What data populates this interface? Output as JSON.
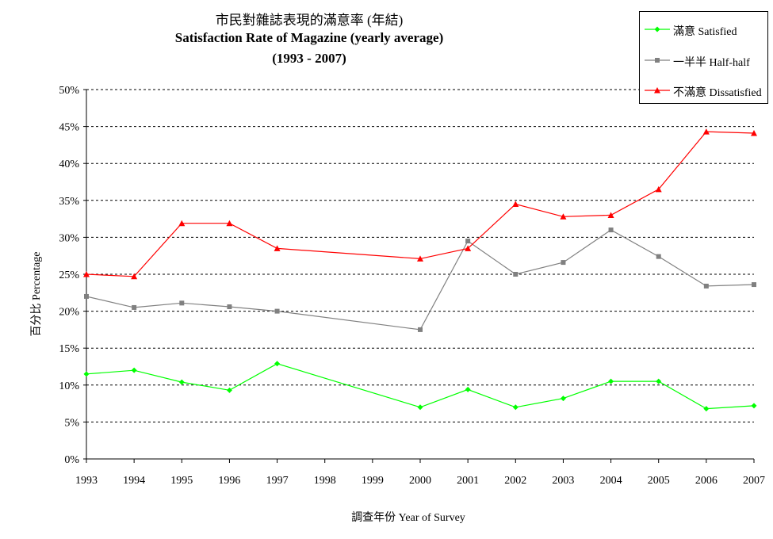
{
  "chart_data": {
    "type": "line",
    "title": "市民對雜誌表現的滿意率 (年結)",
    "subtitle": "Satisfaction Rate of Magazine (yearly average)",
    "year_range": "(1993 - 2007)",
    "xlabel": "調查年份 Year of Survey",
    "ylabel": "百分比 Percentage",
    "categories": [
      "1993",
      "1994",
      "1995",
      "1996",
      "1997",
      "1998",
      "1999",
      "2000",
      "2001",
      "2002",
      "2003",
      "2004",
      "2005",
      "2006",
      "2007"
    ],
    "ylim": [
      0,
      50
    ],
    "yticks": [
      0,
      5,
      10,
      15,
      20,
      25,
      30,
      35,
      40,
      45,
      50
    ],
    "ytick_labels": [
      "0%",
      "5%",
      "10%",
      "15%",
      "20%",
      "25%",
      "30%",
      "35%",
      "40%",
      "45%",
      "50%"
    ],
    "grid": true,
    "legend_position": "top-right",
    "series": [
      {
        "name": "滿意 Satisfied",
        "color": "#00ff00",
        "marker": "diamond",
        "values": [
          11.5,
          12.0,
          10.4,
          9.3,
          12.9,
          null,
          null,
          7.0,
          9.4,
          7.0,
          8.2,
          10.5,
          10.5,
          6.8,
          7.2
        ]
      },
      {
        "name": "一半半 Half-half",
        "color": "#808080",
        "marker": "square",
        "values": [
          22.0,
          20.5,
          21.1,
          20.6,
          20.0,
          null,
          null,
          17.5,
          29.5,
          25.0,
          26.6,
          31.0,
          27.4,
          23.4,
          23.6
        ]
      },
      {
        "name": "不滿意 Dissatisfied",
        "color": "#ff0000",
        "marker": "triangle",
        "values": [
          25.0,
          24.7,
          31.9,
          31.9,
          28.5,
          null,
          null,
          27.1,
          28.5,
          34.5,
          32.8,
          33.0,
          36.5,
          44.3,
          44.1
        ]
      }
    ]
  }
}
